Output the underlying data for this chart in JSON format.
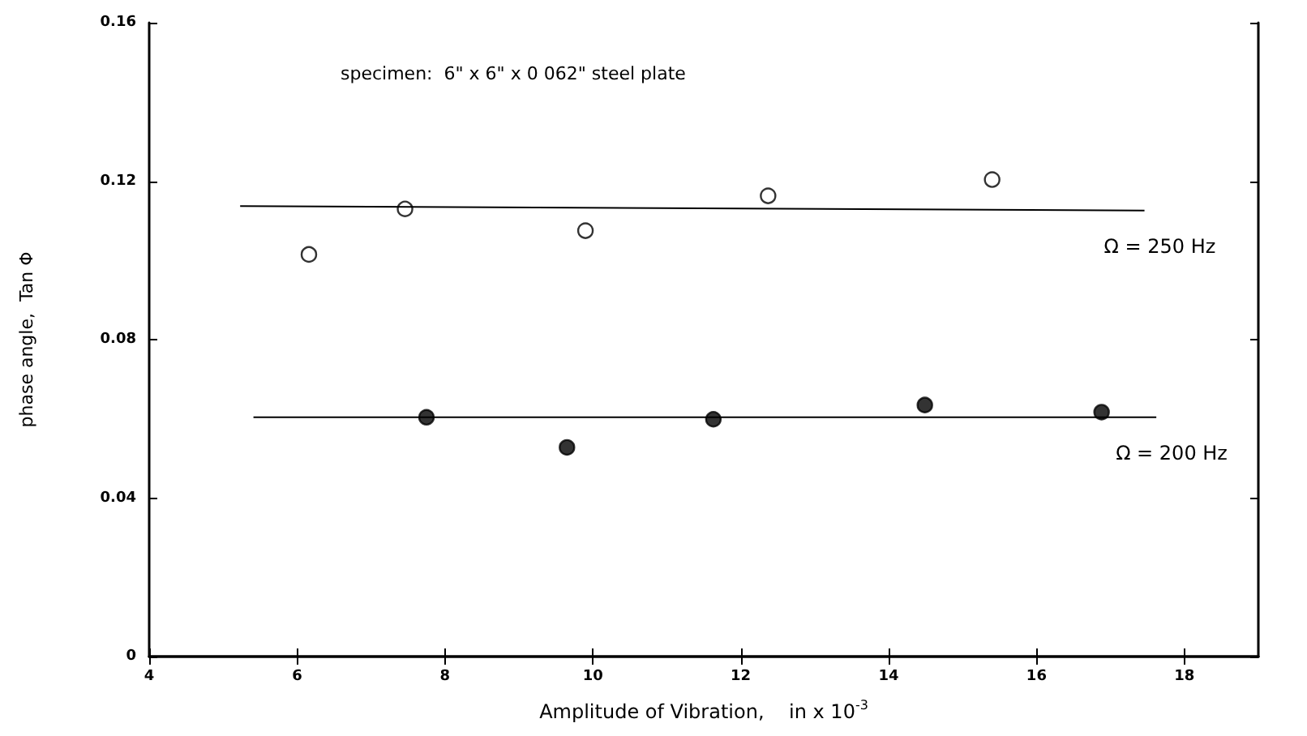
{
  "chart_data": {
    "type": "scatter",
    "xlabel": "Amplitude of Vibration,    in x 10$^{-3}$",
    "ylabel": "phase angle,  Tan Φ",
    "annotations": [
      "specimen:  6\" x 6\" x 0 062\" steel plate"
    ],
    "xlim": [
      4,
      19
    ],
    "xticks": [
      4,
      6,
      8,
      10,
      12,
      14,
      16,
      18
    ],
    "ylim": [
      0,
      0.16
    ],
    "yticks": [
      0,
      0.04,
      0.08,
      0.12,
      0.16
    ],
    "grid": false,
    "legend": false,
    "series": [
      {
        "marker": "circle",
        "color": "#ffffff",
        "x": [
          6.16,
          7.46,
          9.9,
          12.37,
          15.4
        ],
        "values": [
          0.1015,
          0.113,
          0.1075,
          0.1163,
          0.1204
        ]
      },
      {
        "type": "line",
        "name": "Ω = 250 Hz",
        "color": "#000000",
        "marker": "none",
        "line_style": "solid",
        "x": [
          5.23,
          17.46
        ],
        "values": [
          0.1137,
          0.1126
        ]
      },
      {
        "marker": "circle",
        "color": "#000000",
        "x": [
          7.75,
          9.65,
          11.63,
          14.49,
          16.88
        ],
        "values": [
          0.0604,
          0.0528,
          0.0599,
          0.0635,
          0.0617
        ]
      },
      {
        "type": "line",
        "name": "Ω = 200 Hz",
        "color": "#000000",
        "marker": "none",
        "line_style": "solid",
        "x": [
          5.41,
          17.62
        ],
        "values": [
          0.0604,
          0.0604
        ]
      }
    ]
  }
}
